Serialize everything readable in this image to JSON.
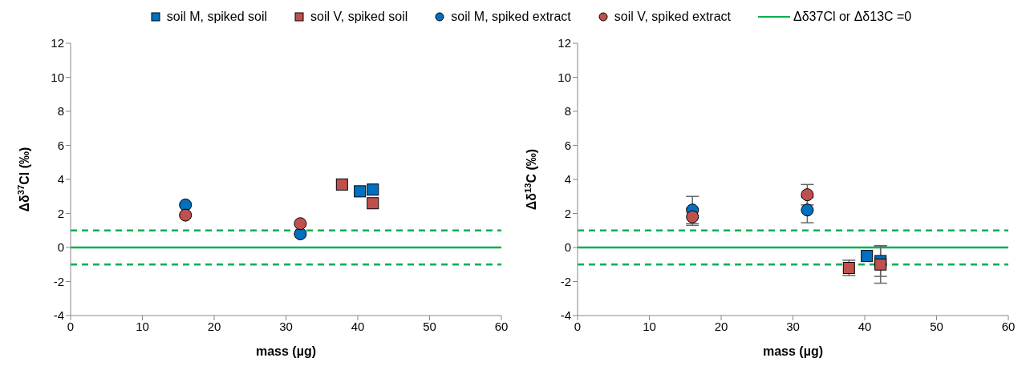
{
  "chart_data": [
    {
      "type": "scatter",
      "ylabel": "Δδ$^{37}$Cl (‰)",
      "xlabel": "mass (µg)",
      "xlim": [
        0,
        60
      ],
      "xticks": [
        0,
        10,
        20,
        30,
        40,
        50,
        60
      ],
      "ylim": [
        -4,
        12
      ],
      "yticks": [
        -4,
        -2,
        0,
        2,
        4,
        6,
        8,
        10,
        12
      ],
      "grid": false,
      "legend": "top",
      "series": [
        {
          "name": "soil M, spiked soil",
          "color": "#0070c0",
          "marker": "square",
          "x": [
            40.3,
            42.1
          ],
          "values": [
            3.3,
            3.4
          ]
        },
        {
          "name": "soil V, spiked soil",
          "color": "#c0504d",
          "marker": "square",
          "x": [
            37.8,
            42.1
          ],
          "values": [
            3.7,
            2.6
          ]
        },
        {
          "name": "soil M, spiked extract",
          "color": "#0070c0",
          "marker": "circle",
          "x": [
            16,
            32
          ],
          "values": [
            2.5,
            0.8
          ]
        },
        {
          "name": "soil V, spiked extract",
          "color": "#c0504d",
          "marker": "circle",
          "x": [
            16,
            32
          ],
          "values": [
            1.9,
            1.4
          ]
        }
      ],
      "ref_lines": [
        {
          "axis": "y",
          "value": 0,
          "label": "Δδ37Cl or Δδ13C =0",
          "color": "#00b050",
          "line_style": "solid"
        },
        {
          "axis": "y",
          "value": 1,
          "color": "#00b050",
          "line_style": "dashed"
        },
        {
          "axis": "y",
          "value": -1,
          "color": "#00b050",
          "line_style": "dashed"
        }
      ]
    },
    {
      "type": "scatter",
      "ylabel": "Δδ$^{13}$C (‰)",
      "xlabel": "mass (µg)",
      "xlim": [
        0,
        60
      ],
      "xticks": [
        0,
        10,
        20,
        30,
        40,
        50,
        60
      ],
      "ylim": [
        -4,
        12
      ],
      "yticks": [
        -4,
        -2,
        0,
        2,
        4,
        6,
        8,
        10,
        12
      ],
      "grid": false,
      "series": [
        {
          "color": "#0070c0",
          "marker": "square",
          "x": [
            40.3,
            42.2
          ],
          "values": [
            -0.5,
            -0.8
          ],
          "errors": [
            null,
            0.9
          ]
        },
        {
          "color": "#c0504d",
          "marker": "square",
          "x": [
            37.8,
            42.2
          ],
          "values": [
            -1.2,
            -1.0
          ],
          "errors": [
            0.45,
            1.1
          ]
        },
        {
          "color": "#0070c0",
          "marker": "circle",
          "x": [
            16,
            32
          ],
          "values": [
            2.2,
            2.2
          ],
          "errors": [
            0.8,
            0.75
          ]
        },
        {
          "color": "#c0504d",
          "marker": "circle",
          "x": [
            16,
            32
          ],
          "values": [
            1.8,
            3.1
          ],
          "errors": [
            0.5,
            0.6
          ]
        }
      ],
      "ref_lines": [
        {
          "axis": "y",
          "value": 0,
          "color": "#00b050",
          "line_style": "solid"
        },
        {
          "axis": "y",
          "value": 1,
          "color": "#00b050",
          "line_style": "dashed"
        },
        {
          "axis": "y",
          "value": -1,
          "color": "#00b050",
          "line_style": "dashed"
        }
      ]
    }
  ]
}
